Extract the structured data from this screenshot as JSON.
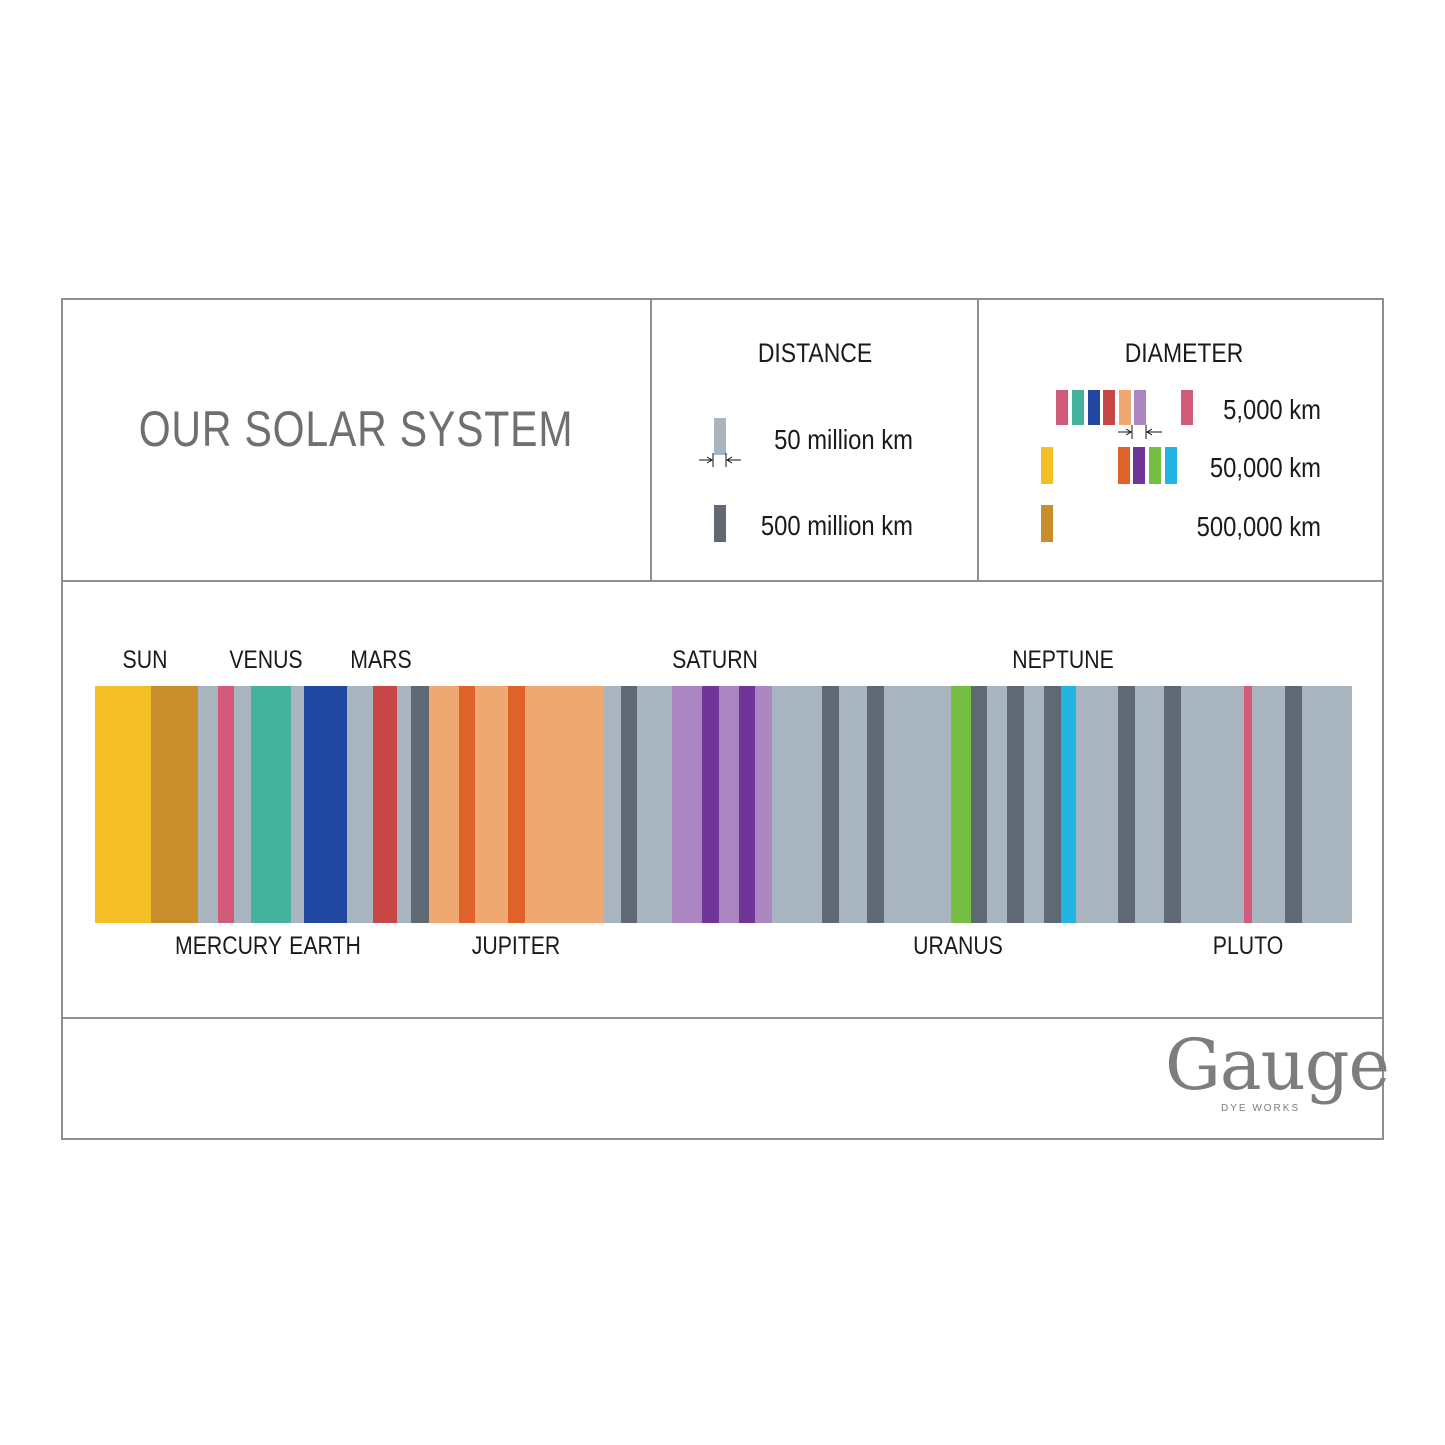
{
  "title": "OUR SOLAR SYSTEM",
  "legend": {
    "distance": {
      "title": "DISTANCE",
      "items": [
        {
          "label": "50 million km",
          "color": "#a8b5bf"
        },
        {
          "label": "500 million km",
          "color": "#5f6973"
        }
      ]
    },
    "diameter": {
      "title": "DIAMETER",
      "items": [
        {
          "label": "5,000 km",
          "colors": [
            "#d15b78",
            "#45b29e",
            "#2048a0",
            "#c74746",
            "#f0a872",
            "#ab86c1"
          ],
          "sample": "#d15b78"
        },
        {
          "label": "50,000 km",
          "colors": [
            "#f4bf26",
            "#e0622b",
            "#703598",
            "#76bd43",
            "#22b4e3"
          ]
        },
        {
          "label": "500,000 km",
          "colors": [
            "#c88e2c"
          ]
        }
      ]
    }
  },
  "planets": {
    "above": [
      "SUN",
      "VENUS",
      "MARS",
      "SATURN",
      "NEPTUNE"
    ],
    "below": [
      "MERCURY",
      "EARTH",
      "JUPITER",
      "URANUS",
      "PLUTO"
    ]
  },
  "colors": {
    "space_light": "#a8b5bf",
    "space_dark": "#5f6973",
    "sun_yellow": "#f4bf26",
    "sun_gold": "#c88e2c",
    "mercury": "#d15b78",
    "venus": "#45b29e",
    "earth": "#2048a0",
    "mars": "#c74746",
    "jupiter_light": "#f0a872",
    "jupiter_dark": "#e0622b",
    "saturn_light": "#ab86c1",
    "saturn_dark": "#703598",
    "uranus": "#76bd43",
    "neptune": "#22b4e3",
    "pluto": "#d15b78"
  },
  "logo": {
    "word": "Gauge",
    "sub": "DYE WORKS"
  }
}
